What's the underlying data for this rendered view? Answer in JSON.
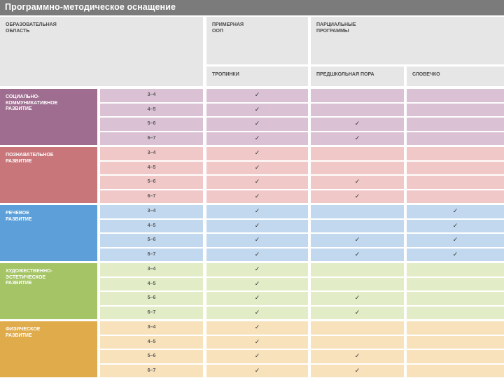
{
  "title": "Программно-методическое оснащение",
  "headers": {
    "area": "ОБРАЗОВАТЕЛЬНАЯ\nОБЛАСТЬ",
    "oop": "ПРИМЕРНАЯ\nООП",
    "partial": "ПАРЦИАЛЬНЫЕ\nПРОГРАММЫ",
    "programs": [
      "ТРОПИНКИ",
      "ПРЕДШКОЛЬНАЯ ПОРА",
      "СЛОВЕЧКО"
    ]
  },
  "check_symbol": "✓",
  "areas": [
    {
      "name": "СОЦИАЛЬНО-\nКОММУНИКАТИВНОЕ\nРАЗВИТИЕ",
      "color": "#9e6d8f",
      "light": "#dbc1d4",
      "rows": [
        {
          "age": "3–4",
          "checks": [
            true,
            false,
            false
          ]
        },
        {
          "age": "4–5",
          "checks": [
            true,
            false,
            false
          ]
        },
        {
          "age": "5–6",
          "checks": [
            true,
            true,
            false
          ]
        },
        {
          "age": "6–7",
          "checks": [
            true,
            true,
            false
          ]
        }
      ]
    },
    {
      "name": "ПОЗНАВАТЕЛЬНОЕ\nРАЗВИТИЕ",
      "color": "#c8767a",
      "light": "#f0c8c8",
      "rows": [
        {
          "age": "3–4",
          "checks": [
            true,
            false,
            false
          ]
        },
        {
          "age": "4–5",
          "checks": [
            true,
            false,
            false
          ]
        },
        {
          "age": "5–6",
          "checks": [
            true,
            true,
            false
          ]
        },
        {
          "age": "6–7",
          "checks": [
            true,
            true,
            false
          ]
        }
      ]
    },
    {
      "name": "РЕЧЕВОЕ\nРАЗВИТИЕ",
      "color": "#5d9fd8",
      "light": "#c2d8ef",
      "rows": [
        {
          "age": "3–4",
          "checks": [
            true,
            false,
            true
          ]
        },
        {
          "age": "4–5",
          "checks": [
            true,
            false,
            true
          ]
        },
        {
          "age": "5–6",
          "checks": [
            true,
            true,
            true
          ]
        },
        {
          "age": "6–7",
          "checks": [
            true,
            true,
            true
          ]
        }
      ]
    },
    {
      "name": "ХУДОЖЕСТВЕННО-\nЭСТЕТИЧЕСКОЕ\nРАЗВИТИЕ",
      "color": "#a4c465",
      "light": "#e2ecc6",
      "rows": [
        {
          "age": "3–4",
          "checks": [
            true,
            false,
            false
          ]
        },
        {
          "age": "4–5",
          "checks": [
            true,
            false,
            false
          ]
        },
        {
          "age": "5–6",
          "checks": [
            true,
            true,
            false
          ]
        },
        {
          "age": "6–7",
          "checks": [
            true,
            true,
            false
          ]
        }
      ]
    },
    {
      "name": "ФИЗИЧЕСКОЕ\nРАЗВИТИЕ",
      "color": "#e0ab4b",
      "light": "#f8e2bb",
      "rows": [
        {
          "age": "3–4",
          "checks": [
            true,
            false,
            false
          ]
        },
        {
          "age": "4–5",
          "checks": [
            true,
            false,
            false
          ]
        },
        {
          "age": "5–6",
          "checks": [
            true,
            true,
            false
          ]
        },
        {
          "age": "6–7",
          "checks": [
            true,
            true,
            false
          ]
        }
      ]
    }
  ]
}
